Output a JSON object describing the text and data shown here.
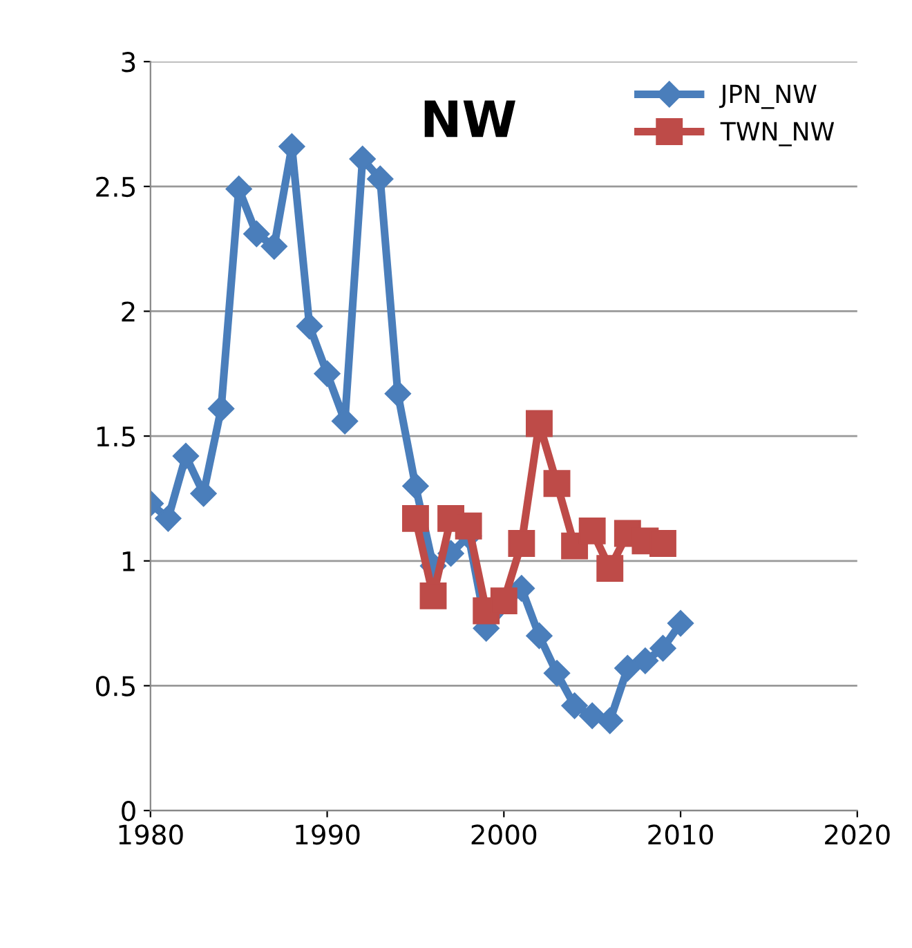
{
  "chart_data": {
    "type": "line",
    "title": "NW",
    "series": [
      {
        "name": "JPN_NW",
        "color": "#4a7ebb",
        "marker": "diamond",
        "x": [
          1980,
          1981,
          1982,
          1983,
          1984,
          1985,
          1986,
          1987,
          1988,
          1989,
          1990,
          1991,
          1992,
          1993,
          1994,
          1995,
          1996,
          1997,
          1998,
          1999,
          2000,
          2001,
          2002,
          2003,
          2004,
          2005,
          2006,
          2007,
          2008,
          2009,
          2010
        ],
        "values": [
          1.23,
          1.17,
          1.42,
          1.27,
          1.61,
          2.49,
          2.31,
          2.26,
          2.66,
          1.94,
          1.75,
          1.56,
          2.61,
          2.53,
          1.67,
          1.3,
          0.98,
          1.03,
          1.1,
          0.73,
          null,
          0.89,
          0.7,
          0.55,
          0.42,
          0.38,
          0.36,
          0.57,
          0.6,
          0.65,
          0.75
        ]
      },
      {
        "name": "TWN_NW",
        "color": "#be4b48",
        "marker": "square",
        "x": [
          1995,
          1996,
          1997,
          1998,
          1999,
          2000,
          2001,
          2002,
          2003,
          2004,
          2005,
          2006,
          2007,
          2008,
          2009
        ],
        "values": [
          1.17,
          0.86,
          1.17,
          1.14,
          0.8,
          0.84,
          1.07,
          1.55,
          1.31,
          1.06,
          1.12,
          0.97,
          1.11,
          1.08,
          1.07
        ]
      }
    ],
    "xlim": [
      1980,
      2020
    ],
    "xticks": [
      1980,
      1990,
      2000,
      2010,
      2020
    ],
    "ylim": [
      0,
      3
    ],
    "yticks": [
      0,
      0.5,
      1,
      1.5,
      2,
      2.5,
      3
    ],
    "grid": "y",
    "legend": "top right"
  }
}
